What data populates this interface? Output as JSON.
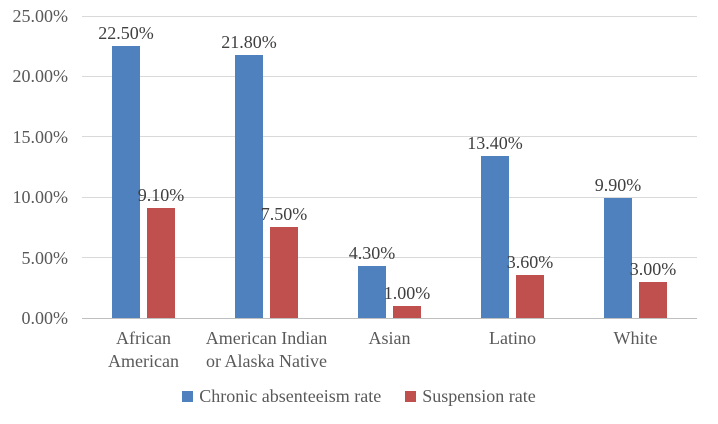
{
  "chart_data": {
    "type": "bar",
    "title": "",
    "xlabel": "",
    "ylabel": "",
    "categories": [
      "African\nAmerican",
      "American Indian\nor Alaska Native",
      "Asian",
      "Latino",
      "White"
    ],
    "series": [
      {
        "name": "Chronic absenteeism rate",
        "color": "#4E81BD",
        "values": [
          22.5,
          21.8,
          4.3,
          13.4,
          9.9
        ],
        "labels": [
          "22.50%",
          "21.80%",
          "4.30%",
          "13.40%",
          "9.90%"
        ]
      },
      {
        "name": "Suspension rate",
        "color": "#C0504D",
        "values": [
          9.1,
          7.5,
          1.0,
          3.6,
          3.0
        ],
        "labels": [
          "9.10%",
          "7.50%",
          "1.00%",
          "3.60%",
          "3.00%"
        ]
      }
    ],
    "y_axis": {
      "min": 0,
      "max": 25,
      "tick_interval": 5,
      "tick_labels": [
        "0.00%",
        "5.00%",
        "10.00%",
        "15.00%",
        "20.00%",
        "25.00%"
      ]
    },
    "grid": true,
    "legend_position": "bottom",
    "colors": {
      "grid": "#D9D9D9",
      "axis_line": "#BFBFBF",
      "data_label": "#404040",
      "axis_label": "#595959"
    }
  }
}
